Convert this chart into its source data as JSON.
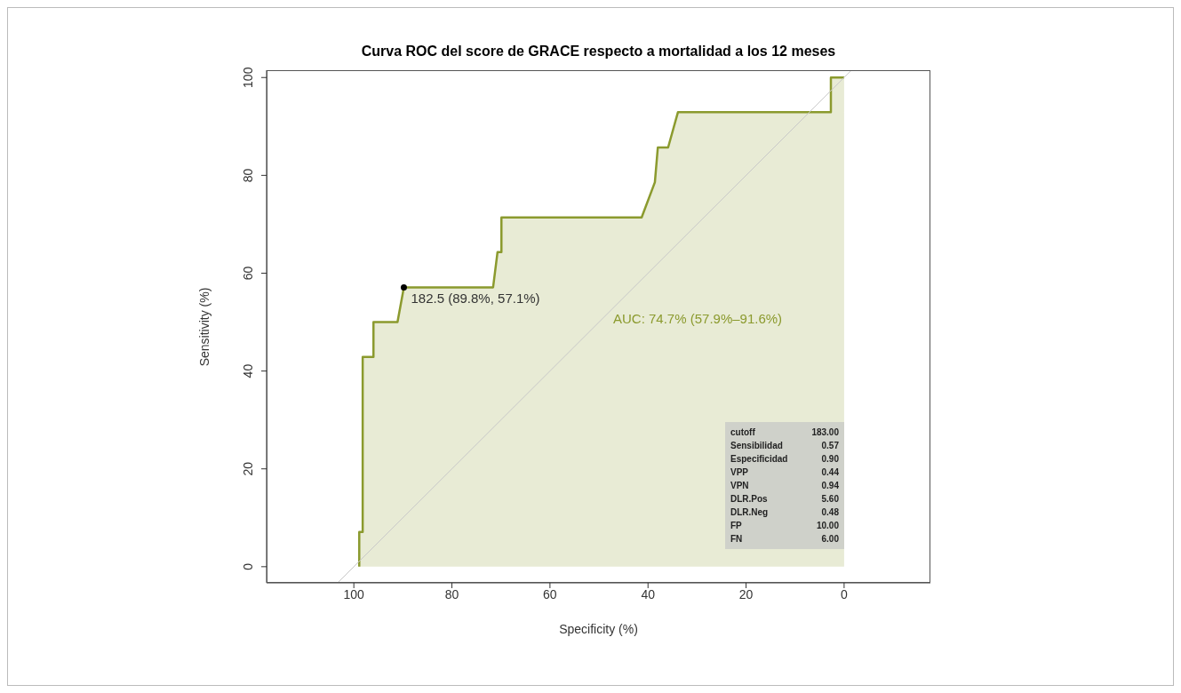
{
  "chart_data": {
    "type": "area",
    "title": "Curva ROC del score de GRACE respecto a mortalidad a los 12 meses",
    "xlabel": "Specificity (%)",
    "ylabel": "Sensitivity (%)",
    "xlim": [
      117.8,
      -17.6
    ],
    "xticks": [
      100,
      80,
      60,
      40,
      20,
      0
    ],
    "ylim": [
      -3.3,
      101.5
    ],
    "yticks": [
      0,
      20,
      40,
      60,
      80,
      100
    ],
    "grid": false,
    "legend": false,
    "series": [
      {
        "color": "#8b9a2e",
        "x": [
          98.9,
          98.9,
          98.2,
          98.2,
          96.0,
          96.0,
          91.1,
          89.8,
          71.6,
          70.7,
          69.9,
          69.9,
          41.3,
          38.6,
          38.0,
          35.9,
          33.9,
          2.7,
          2.7,
          0
        ],
        "values": [
          0,
          7.1,
          7.1,
          42.9,
          42.9,
          50,
          50,
          57.1,
          57.1,
          64.3,
          64.3,
          71.4,
          71.4,
          78.6,
          85.7,
          85.7,
          92.9,
          92.9,
          100,
          100
        ]
      },
      {
        "type": "line",
        "color": "#c8c8c8",
        "x": [
          103.3,
          -1.5
        ],
        "values": [
          -3.3,
          101.5
        ]
      },
      {
        "type": "scatter",
        "color": "#000000",
        "x": [
          89.8
        ],
        "values": [
          57.1
        ]
      }
    ],
    "annotations": [
      {
        "text": "182.5 (89.8%, 57.1%)",
        "x": 89.8,
        "y": 57.1
      },
      "AUC: 74.7% (57.9%–91.6%)",
      "cutoff 183.00",
      "Sensibilidad 0.57",
      "Especificidad 0.90",
      "VPP 0.44",
      "VPN 0.94",
      "DLR.Pos 5.60",
      "DLR.Neg 0.48",
      "FP 10.00",
      "FN 6.00"
    ]
  }
}
